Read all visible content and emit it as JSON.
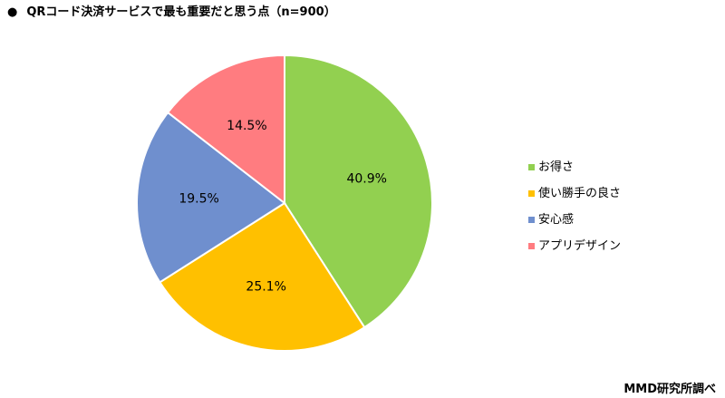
{
  "header": {
    "bullet": "●",
    "title": "QRコード決済サービスで最も重要だと思う点（n=900）"
  },
  "chart_data": {
    "type": "pie",
    "title": "QRコード決済サービスで最も重要だと思う点（n=900）",
    "start_angle_deg": 0,
    "direction": "clockwise",
    "legend_position": "right",
    "slices": [
      {
        "label": "お得さ",
        "value": 40.9,
        "value_label": "40.9%",
        "color": "#92d050"
      },
      {
        "label": "使い勝手の良さ",
        "value": 25.1,
        "value_label": "25.1%",
        "color": "#ffc000"
      },
      {
        "label": "安心感",
        "value": 19.5,
        "value_label": "19.5%",
        "color": "#6f8fce"
      },
      {
        "label": "アプリデザイン",
        "value": 14.5,
        "value_label": "14.5%",
        "color": "#ff7c80"
      }
    ]
  },
  "footer": {
    "source": "MMD研究所調べ"
  }
}
